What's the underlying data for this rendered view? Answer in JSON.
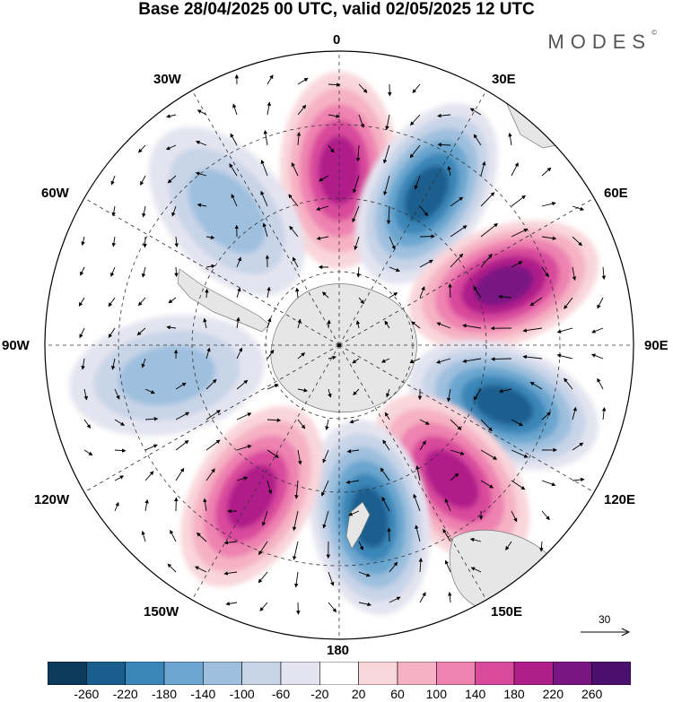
{
  "title": "Base 28/04/2025 00 UTC, valid 02/05/2025 12 UTC",
  "brand": {
    "name": "MODES",
    "mark": "©"
  },
  "longitude_labels": {
    "top": "0",
    "top_left": "30W",
    "top_right": "30E",
    "upper_left": "60W",
    "upper_right": "60E",
    "left": "90W",
    "right": "90E",
    "lower_left": "120W",
    "lower_right": "120E",
    "bottom_left": "150W",
    "bottom_right": "150E",
    "bottom": "180"
  },
  "reference_vector": {
    "value": "30"
  },
  "colorbar": {
    "ticks": [
      "-260",
      "-220",
      "-180",
      "-140",
      "-100",
      "-60",
      "-20",
      "20",
      "60",
      "100",
      "140",
      "180",
      "220",
      "260"
    ],
    "colors": [
      "#0c3a5c",
      "#1a5e8e",
      "#3b86b8",
      "#6aa6cf",
      "#9ec0de",
      "#c8d4e8",
      "#e4e4f0",
      "#ffffff",
      "#f9d6da",
      "#f6b2c4",
      "#ee82b0",
      "#d94a9c",
      "#b01e8a",
      "#7a1584",
      "#4b0f6e"
    ]
  },
  "map": {
    "projection": "south polar stereographic",
    "land_color": "#e6e6e6",
    "anomaly_centers": [
      {
        "lon": 0,
        "value": 220
      },
      {
        "lon": 30,
        "value": -260
      },
      {
        "lon": 70,
        "value": 240
      },
      {
        "lon": 110,
        "value": -260
      },
      {
        "lon": 140,
        "value": 230
      },
      {
        "lon": 170,
        "value": -240
      },
      {
        "lon": -150,
        "value": 200
      },
      {
        "lon": -100,
        "value": -120
      },
      {
        "lon": -40,
        "value": -120
      }
    ]
  }
}
